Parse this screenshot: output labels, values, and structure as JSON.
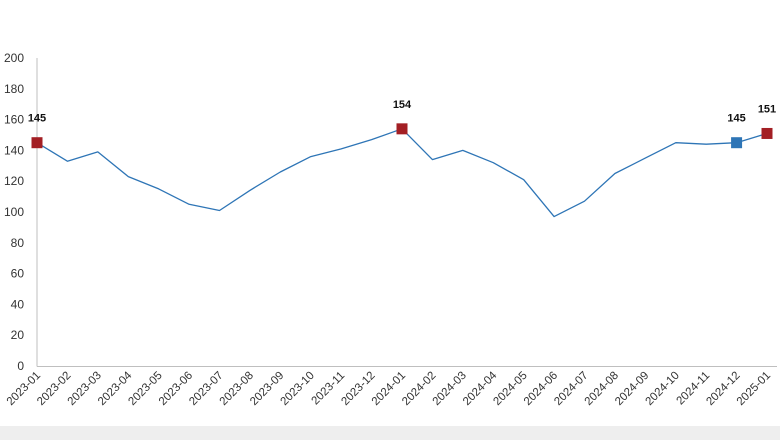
{
  "chart_data": {
    "type": "line",
    "title": "",
    "xlabel": "",
    "ylabel": "",
    "ylim": [
      0,
      200
    ],
    "yticks": [
      0,
      20,
      40,
      60,
      80,
      100,
      120,
      140,
      160,
      180,
      200
    ],
    "grid": false,
    "legend": "none",
    "categories": [
      "2023-01",
      "2023-02",
      "2023-03",
      "2023-04",
      "2023-05",
      "2023-06",
      "2023-07",
      "2023-08",
      "2023-09",
      "2023-10",
      "2023-11",
      "2023-12",
      "2024-01",
      "2024-02",
      "2024-03",
      "2024-04",
      "2024-05",
      "2024-06",
      "2024-07",
      "2024-08",
      "2024-09",
      "2024-10",
      "2024-11",
      "2024-12",
      "2025-01"
    ],
    "series": [
      {
        "values": [
          145,
          133,
          139,
          123,
          115,
          105,
          101,
          114,
          126,
          136,
          141,
          147,
          154,
          134,
          140,
          132,
          121,
          97,
          107,
          125,
          135,
          145,
          144,
          145,
          151
        ],
        "color": "#2e75b6"
      }
    ],
    "highlights": [
      {
        "category": "2023-01",
        "value": 145,
        "label": "145",
        "color": "#a31f24"
      },
      {
        "category": "2024-01",
        "value": 154,
        "label": "154",
        "color": "#a31f24"
      },
      {
        "category": "2024-12",
        "value": 145,
        "label": "145",
        "color": "#2e75b6"
      },
      {
        "category": "2025-01",
        "value": 151,
        "label": "151",
        "color": "#a31f24"
      }
    ]
  }
}
